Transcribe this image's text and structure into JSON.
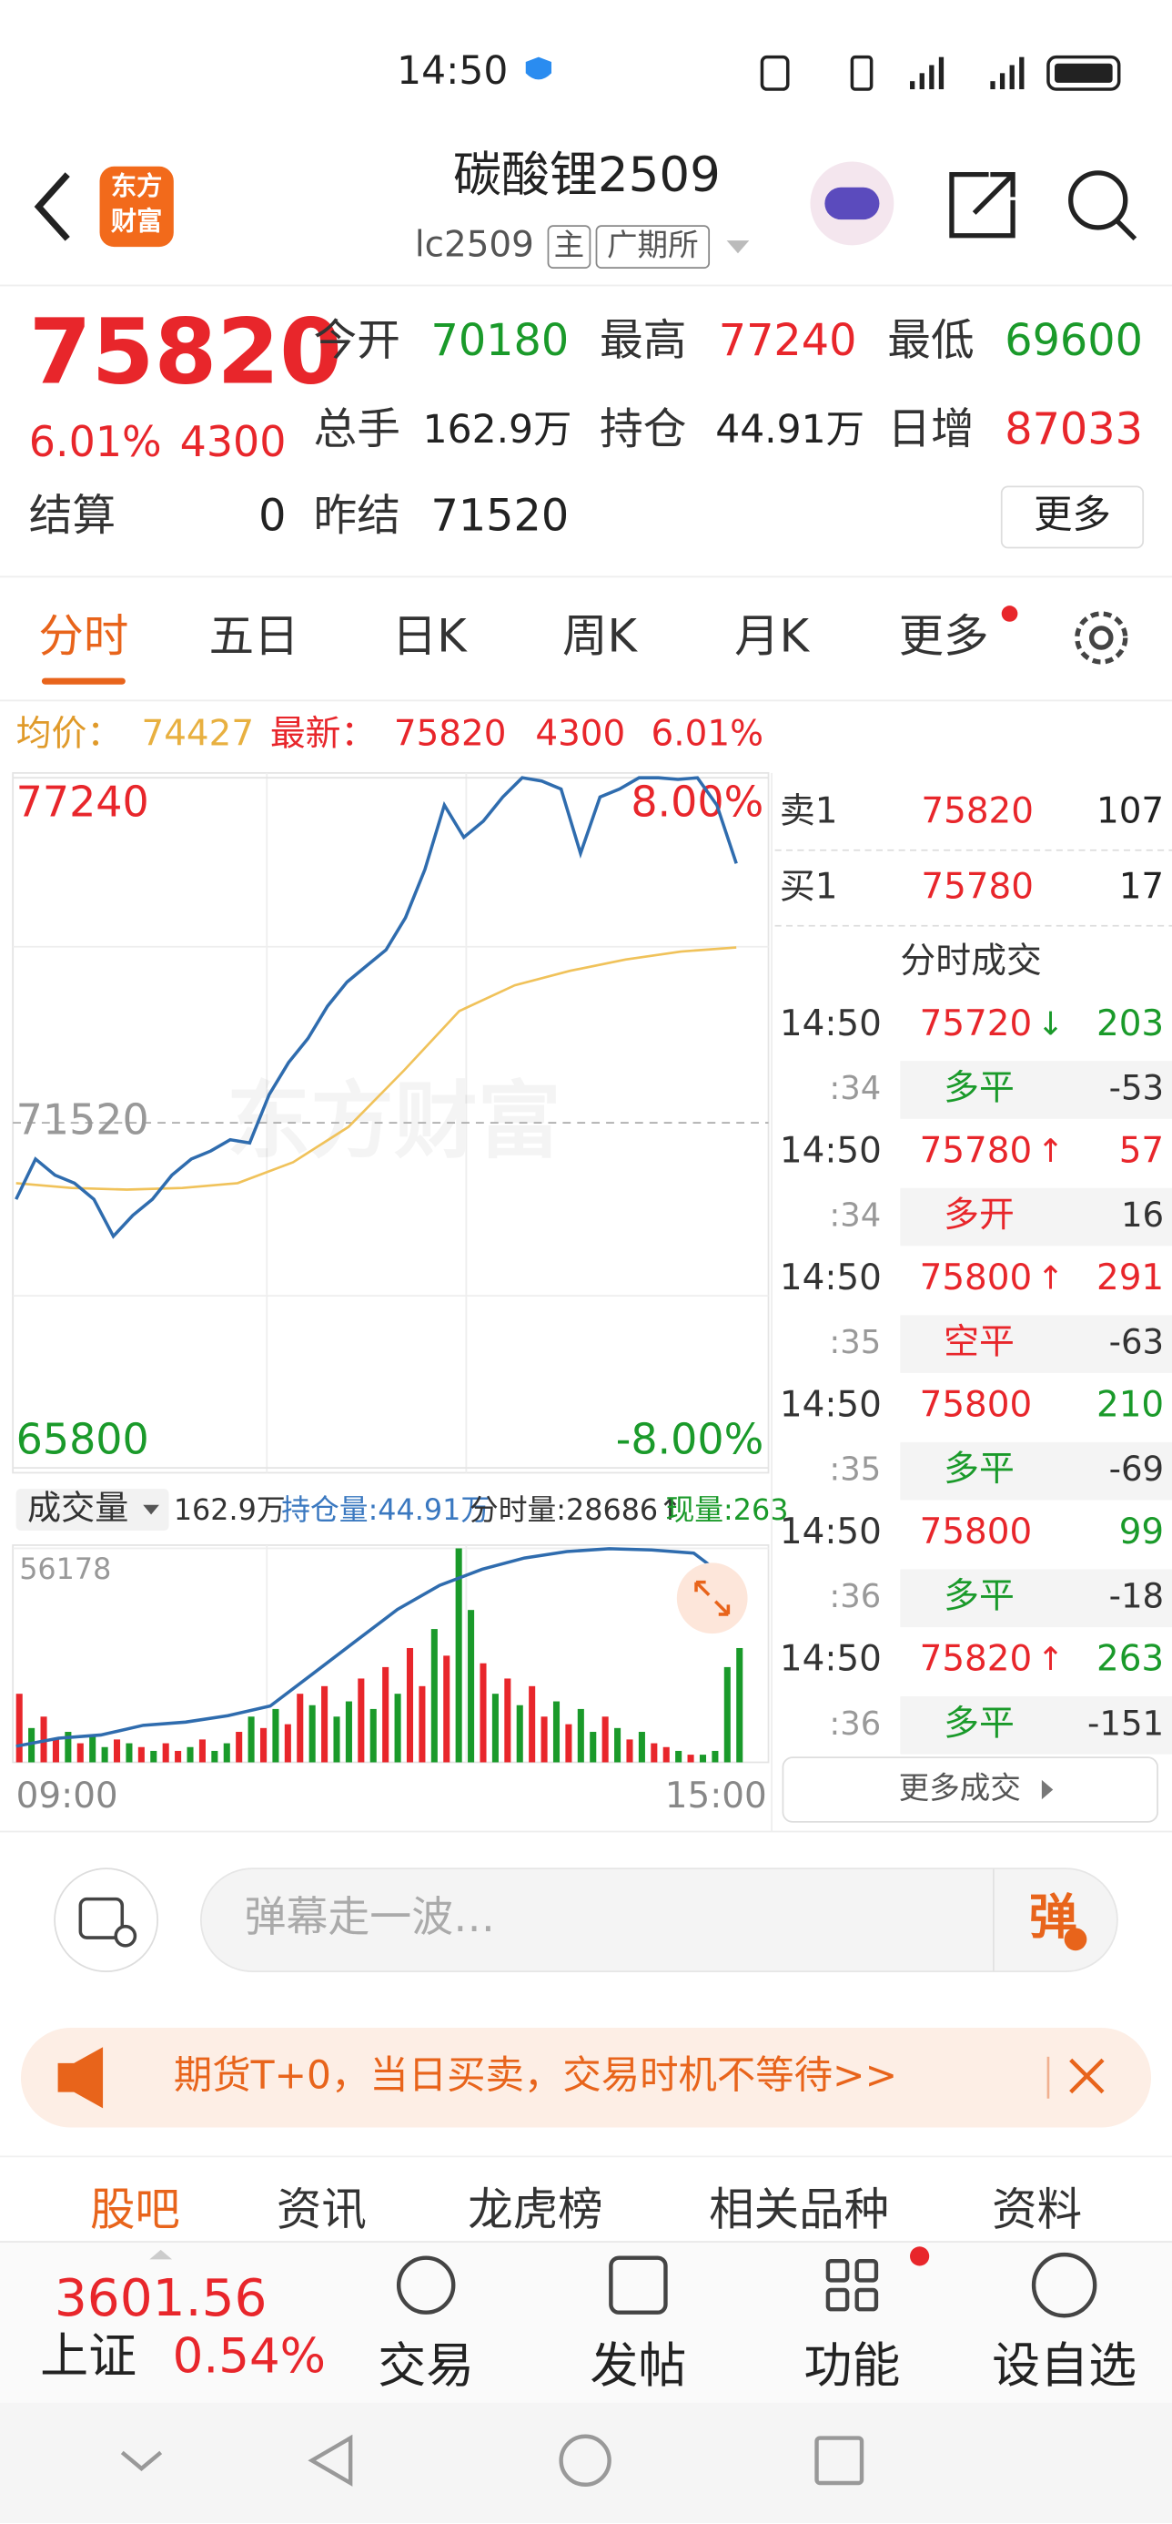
{
  "status_bar": {
    "time": "14:50"
  },
  "header": {
    "logo": [
      "东方",
      "财富"
    ],
    "title": "碳酸锂2509",
    "code": "lc2509",
    "badge": "主",
    "exchange": "广期所"
  },
  "quote": {
    "price": 75820,
    "change_pct": "6.01%",
    "change": 4300,
    "fields": [
      {
        "label": "今开",
        "value": 70180,
        "color": "#1a9a2a"
      },
      {
        "label": "最高",
        "value": 77240,
        "color": "#e8262b"
      },
      {
        "label": "最低",
        "value": 69600,
        "color": "#1a9a2a"
      },
      {
        "label": "总手",
        "value": "162.9万",
        "color": "#222222"
      },
      {
        "label": "持仓",
        "value": "44.91万",
        "color": "#222222"
      },
      {
        "label": "日增",
        "value": 87033,
        "color": "#e8262b"
      },
      {
        "label": "结算",
        "value": 0,
        "color": "#222222"
      },
      {
        "label": "昨结",
        "value": 71520,
        "color": "#222222"
      }
    ],
    "more": "更多"
  },
  "tabs": {
    "items": [
      "分时",
      "五日",
      "日K",
      "周K",
      "月K",
      "更多"
    ]
  },
  "info_line": {
    "avg_label": "均价：",
    "avg": 74427,
    "last_label": "最新：",
    "last": 75820,
    "change": 4300,
    "change_pct": "6.01%"
  },
  "price_chart": {
    "type": "line",
    "ylim": [
      65800,
      77240
    ],
    "yticks": [
      65800,
      71520,
      77240
    ],
    "pct_top": "8.00%",
    "pct_bottom": "-8.00%",
    "watermark": "东方财富",
    "price": {
      "color": "#2f6cae",
      "values": [
        70253,
        70920,
        70653,
        70520,
        70253,
        69640,
        69987,
        70253,
        70653,
        70920,
        71053,
        71240,
        71187,
        71987,
        72520,
        72920,
        73453,
        73853,
        74120,
        74387,
        74920,
        75720,
        76787,
        76253,
        76520,
        76920,
        77240,
        77187,
        77053,
        75987,
        76920,
        77053,
        77240,
        77240,
        77213,
        77240,
        76787,
        75820
      ]
    },
    "average": {
      "color": "#f0c25a",
      "values": [
        70520,
        70440,
        70413,
        70440,
        70520,
        70867,
        71453,
        72387,
        73373,
        73800,
        74040,
        74227,
        74360,
        74427
      ]
    }
  },
  "volume_chart": {
    "type": "bar",
    "selector": "成交量",
    "total": "162.9万",
    "oi": "持仓量:44.91万",
    "period_vol": "分时量:28686↑",
    "cur_vol": "现量:263",
    "ylim": [
      0,
      56178
    ],
    "yticks": [
      56178
    ],
    "xticks": [
      "09:00",
      "15:00"
    ],
    "values": [
      18000,
      9000,
      12000,
      6000,
      8000,
      5000,
      7000,
      4000,
      6000,
      5000,
      4000,
      3000,
      5000,
      3000,
      4000,
      6000,
      3000,
      5000,
      8000,
      12000,
      9000,
      14000,
      10000,
      18000,
      15000,
      20000,
      12000,
      16000,
      22000,
      14000,
      25000,
      18000,
      30000,
      20000,
      35000,
      28000,
      56178,
      40000,
      26000,
      18000,
      22000,
      15000,
      20000,
      12000,
      16000,
      10000,
      14000,
      8000,
      12000,
      9000,
      6000,
      8000,
      5000,
      4000,
      3000,
      2000,
      2000,
      3000,
      25000,
      30000
    ],
    "colors": [
      "#e8262b",
      "#1a9a2a",
      "#e8262b",
      "#e8262b",
      "#1a9a2a",
      "#e8262b",
      "#1a9a2a",
      "#1a9a2a",
      "#e8262b",
      "#1a9a2a",
      "#e8262b",
      "#1a9a2a",
      "#e8262b",
      "#e8262b",
      "#1a9a2a",
      "#e8262b",
      "#1a9a2a",
      "#1a9a2a",
      "#e8262b",
      "#1a9a2a",
      "#e8262b",
      "#1a9a2a",
      "#e8262b",
      "#e8262b",
      "#1a9a2a",
      "#e8262b",
      "#1a9a2a",
      "#1a9a2a",
      "#e8262b",
      "#1a9a2a",
      "#e8262b",
      "#1a9a2a",
      "#e8262b",
      "#e8262b",
      "#1a9a2a",
      "#e8262b",
      "#1a9a2a",
      "#1a9a2a",
      "#e8262b",
      "#1a9a2a",
      "#e8262b",
      "#1a9a2a",
      "#e8262b",
      "#e8262b",
      "#1a9a2a",
      "#e8262b",
      "#1a9a2a",
      "#1a9a2a",
      "#e8262b",
      "#1a9a2a",
      "#e8262b",
      "#1a9a2a",
      "#e8262b",
      "#e8262b",
      "#1a9a2a",
      "#e8262b",
      "#1a9a2a",
      "#1a9a2a",
      "#1a9a2a",
      "#1a9a2a"
    ],
    "open_interest": {
      "color": "#2f6cae",
      "values": [
        4224,
        6336,
        7181,
        9715,
        10560,
        12250,
        14784,
        23232,
        31680,
        40128,
        46464,
        50688,
        53645,
        55334,
        56100,
        55757,
        54912,
        46464
      ]
    }
  },
  "order_book": [
    {
      "label": "卖1",
      "price": 75820,
      "volume": 107
    },
    {
      "label": "买1",
      "price": 75780,
      "volume": 17
    }
  ],
  "trades": {
    "title": "分时成交",
    "more": "更多成交",
    "rows": [
      {
        "time": "14:50",
        "price": 75720,
        "arrow": "↓",
        "arrow_color": "#1a9a2a",
        "volume": 203,
        "volume_color": "#1a9a2a",
        "sec": ":34",
        "kind": "多平",
        "kind_color": "#1a9a2a",
        "change": -53
      },
      {
        "time": "14:50",
        "price": 75780,
        "arrow": "↑",
        "arrow_color": "#e8262b",
        "volume": 57,
        "volume_color": "#e8262b",
        "sec": ":34",
        "kind": "多开",
        "kind_color": "#e8262b",
        "change": 16
      },
      {
        "time": "14:50",
        "price": 75800,
        "arrow": "↑",
        "arrow_color": "#e8262b",
        "volume": 291,
        "volume_color": "#e8262b",
        "sec": ":35",
        "kind": "空平",
        "kind_color": "#e8262b",
        "change": -63
      },
      {
        "time": "14:50",
        "price": 75800,
        "volume": 210,
        "volume_color": "#1a9a2a",
        "sec": ":35",
        "kind": "多平",
        "kind_color": "#1a9a2a",
        "change": -69
      },
      {
        "time": "14:50",
        "price": 75800,
        "volume": 99,
        "volume_color": "#1a9a2a",
        "sec": ":36",
        "kind": "多平",
        "kind_color": "#1a9a2a",
        "change": -18
      },
      {
        "time": "14:50",
        "price": 75820,
        "arrow": "↑",
        "arrow_color": "#e8262b",
        "volume": 263,
        "volume_color": "#1a9a2a",
        "sec": ":36",
        "kind": "多平",
        "kind_color": "#1a9a2a",
        "change": -151
      }
    ]
  },
  "comment": {
    "placeholder": "弹幕走一波…",
    "button": "弹"
  },
  "banner": {
    "text": "期货T+0，当日买卖，交易时机不等待>>"
  },
  "bottom_tabs": [
    "股吧",
    "资讯",
    "龙虎榜",
    "相关品种",
    "资料"
  ],
  "nav": {
    "index_value": 3601.56,
    "index_name": "上证",
    "index_pct": "0.54%",
    "items": [
      "交易",
      "发帖",
      "功能",
      "设自选"
    ]
  }
}
